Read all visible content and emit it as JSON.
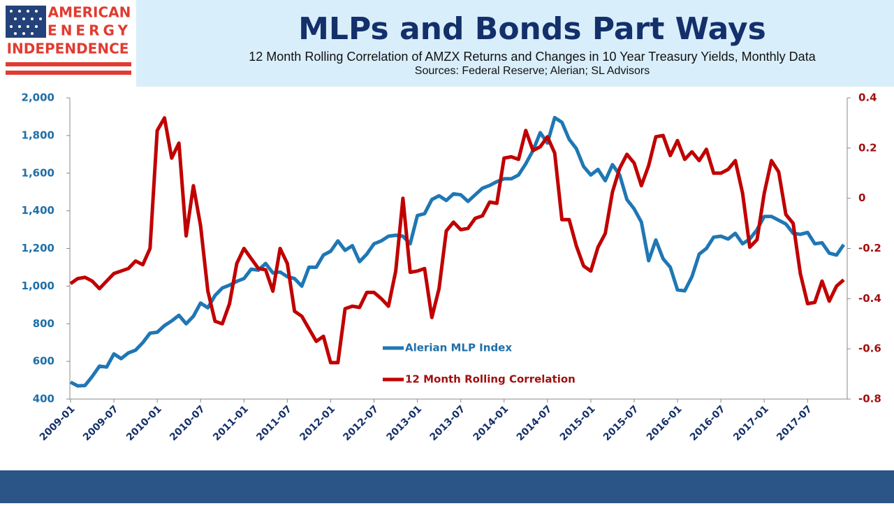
{
  "logo": {
    "lines": [
      "AMERICAN",
      "ENERGY",
      "INDEPENDENCE"
    ]
  },
  "chart_data": {
    "type": "line",
    "title": "MLPs and Bonds Part Ways",
    "subtitle": "12 Month Rolling Correlation of AMZX Returns and Changes in 10 Year Treasury Yields, Monthly Data",
    "source": "Sources: Federal Reserve; Alerian; SL Advisors",
    "categories": [
      "2009-01",
      null,
      null,
      null,
      null,
      null,
      "2009-07",
      null,
      null,
      null,
      null,
      null,
      "2010-01",
      null,
      null,
      null,
      null,
      null,
      "2010-07",
      null,
      null,
      null,
      null,
      null,
      "2011-01",
      null,
      null,
      null,
      null,
      null,
      "2011-07",
      null,
      null,
      null,
      null,
      null,
      "2012-01",
      null,
      null,
      null,
      null,
      null,
      "2012-07",
      null,
      null,
      null,
      null,
      null,
      "2013-01",
      null,
      null,
      null,
      null,
      null,
      "2013-07",
      null,
      null,
      null,
      null,
      null,
      "2014-01",
      null,
      null,
      null,
      null,
      null,
      "2014-07",
      null,
      null,
      null,
      null,
      null,
      "2015-01",
      null,
      null,
      null,
      null,
      null,
      "2015-07",
      null,
      null,
      null,
      null,
      null,
      "2016-01",
      null,
      null,
      null,
      null,
      null,
      "2016-07",
      null,
      null,
      null,
      null,
      null,
      "2017-01",
      null,
      null,
      null,
      null,
      null,
      "2017-07",
      null,
      null,
      null,
      null,
      null
    ],
    "ylim": [
      400,
      2000
    ],
    "yticks": [
      400,
      600,
      800,
      {
        "value": 1000,
        "label": "1,000"
      },
      {
        "value": 1200,
        "label": "1,200"
      },
      {
        "value": 1400,
        "label": "1,400"
      },
      {
        "value": 1600,
        "label": "1,600"
      },
      {
        "value": 1800,
        "label": "1,800"
      },
      {
        "value": 2000,
        "label": "2,000"
      }
    ],
    "y2lim": [
      -0.8,
      0.4
    ],
    "y2ticks": [
      -0.8,
      -0.6,
      -0.4,
      -0.2,
      0,
      0.2,
      0.4
    ],
    "series": [
      {
        "name": "Alerian MLP Index",
        "color": "#1f77b4",
        "axis": "y",
        "values": [
          490,
          470,
          472,
          520,
          575,
          570,
          640,
          615,
          645,
          660,
          700,
          750,
          755,
          790,
          815,
          845,
          800,
          840,
          910,
          885,
          950,
          990,
          1005,
          1025,
          1040,
          1090,
          1085,
          1120,
          1070,
          1075,
          1050,
          1040,
          1000,
          1100,
          1100,
          1165,
          1185,
          1240,
          1190,
          1215,
          1130,
          1170,
          1225,
          1240,
          1265,
          1270,
          1265,
          1225,
          1375,
          1385,
          1460,
          1480,
          1455,
          1490,
          1485,
          1450,
          1485,
          1520,
          1535,
          1555,
          1570,
          1570,
          1590,
          1650,
          1720,
          1815,
          1760,
          1895,
          1870,
          1780,
          1730,
          1635,
          1590,
          1620,
          1560,
          1645,
          1590,
          1460,
          1410,
          1340,
          1135,
          1245,
          1145,
          1100,
          980,
          975,
          1050,
          1170,
          1200,
          1260,
          1265,
          1250,
          1280,
          1225,
          1250,
          1300,
          1370,
          1370,
          1350,
          1330,
          1280,
          1275,
          1285,
          1225,
          1230,
          1175,
          1165,
          1220
        ]
      },
      {
        "name": "12 Month Rolling Correlation",
        "color": "#c00000",
        "axis": "y2",
        "values": [
          -0.34,
          -0.32,
          -0.315,
          -0.33,
          -0.36,
          -0.33,
          -0.3,
          -0.29,
          -0.28,
          -0.25,
          -0.265,
          -0.2,
          0.27,
          0.32,
          0.16,
          0.22,
          -0.15,
          0.05,
          -0.11,
          -0.37,
          -0.49,
          -0.5,
          -0.42,
          -0.26,
          -0.2,
          -0.24,
          -0.28,
          -0.285,
          -0.37,
          -0.2,
          -0.26,
          -0.45,
          -0.47,
          -0.52,
          -0.57,
          -0.55,
          -0.655,
          -0.655,
          -0.44,
          -0.43,
          -0.435,
          -0.375,
          -0.375,
          -0.4,
          -0.43,
          -0.29,
          0,
          -0.295,
          -0.29,
          -0.28,
          -0.475,
          -0.36,
          -0.13,
          -0.095,
          -0.125,
          -0.12,
          -0.08,
          -0.07,
          -0.015,
          -0.02,
          0.16,
          0.165,
          0.155,
          0.27,
          0.19,
          0.205,
          0.245,
          0.18,
          -0.085,
          -0.085,
          -0.19,
          -0.27,
          -0.29,
          -0.195,
          -0.14,
          0.025,
          0.12,
          0.175,
          0.14,
          0.05,
          0.13,
          0.245,
          0.25,
          0.17,
          0.23,
          0.155,
          0.185,
          0.15,
          0.195,
          0.1,
          0.1,
          0.115,
          0.15,
          0.02,
          -0.195,
          -0.165,
          0.02,
          0.15,
          0.105,
          -0.065,
          -0.1,
          -0.3,
          -0.42,
          -0.415,
          -0.33,
          -0.41,
          -0.35,
          -0.325
        ]
      }
    ]
  }
}
